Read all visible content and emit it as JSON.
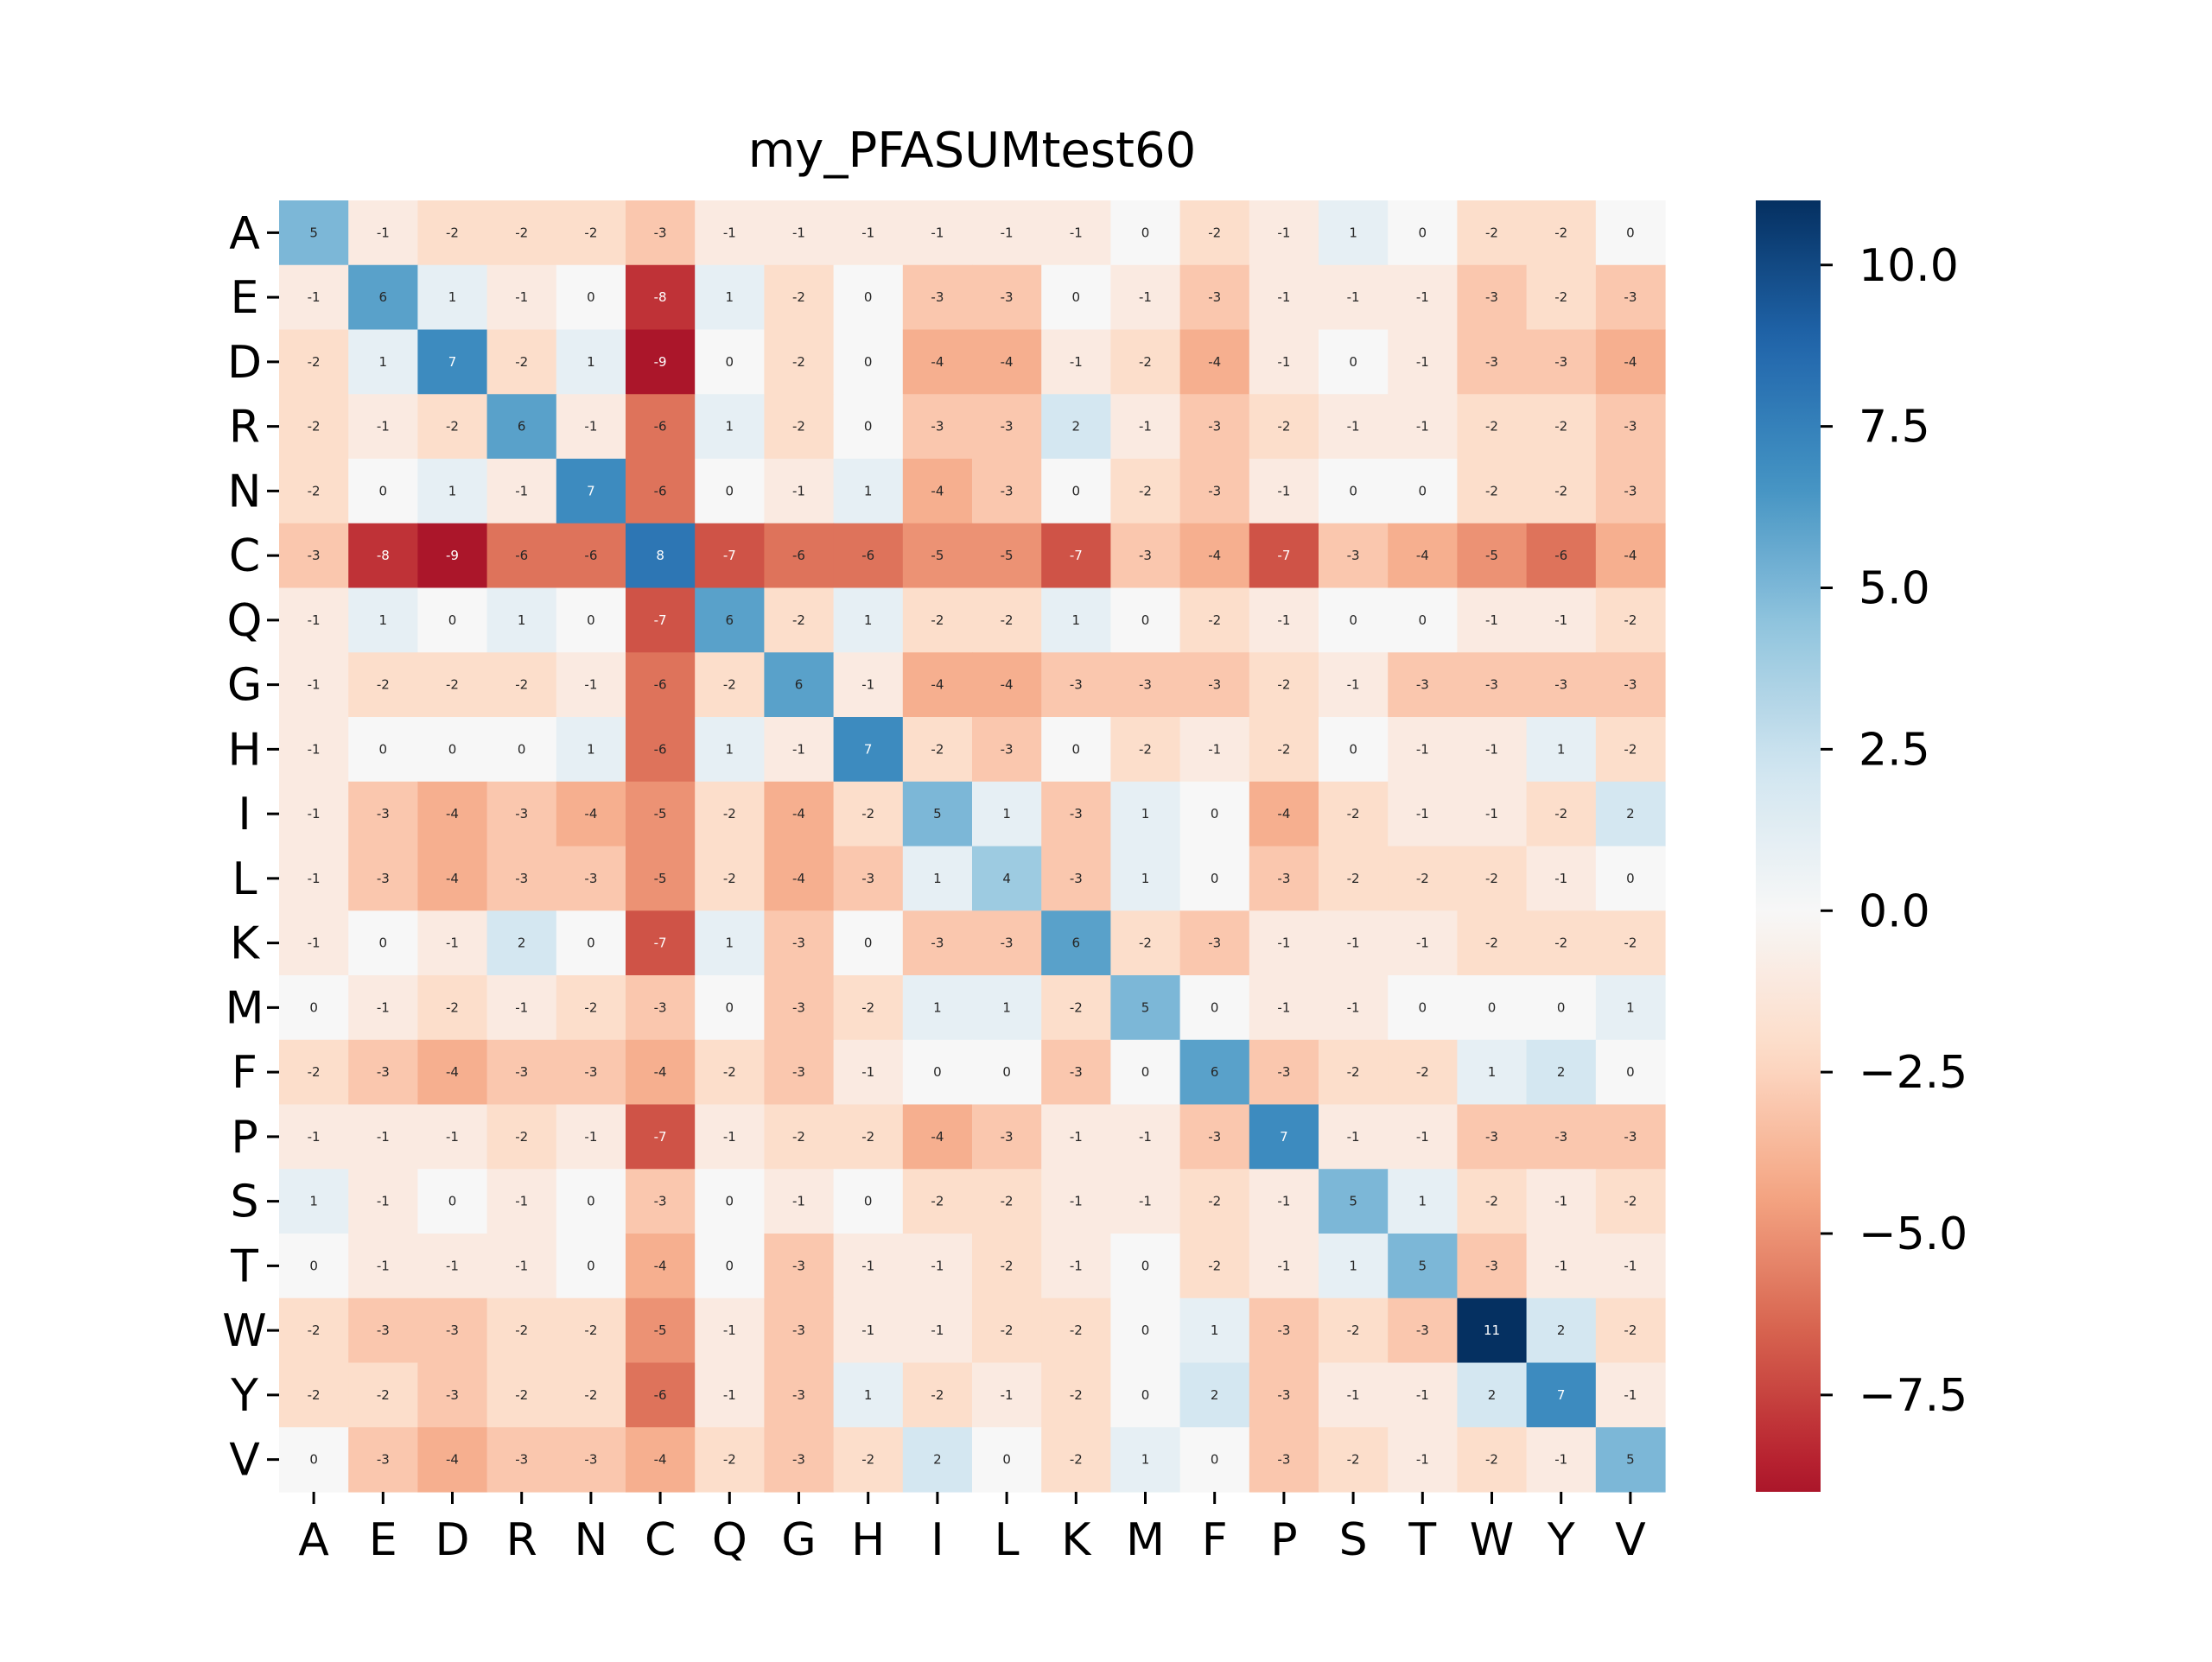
{
  "chart_data": {
    "type": "heatmap",
    "title": "my_PFASUMtest60",
    "xlabel": "",
    "ylabel": "",
    "x_categories": [
      "A",
      "E",
      "D",
      "R",
      "N",
      "C",
      "Q",
      "G",
      "H",
      "I",
      "L",
      "K",
      "M",
      "F",
      "P",
      "S",
      "T",
      "W",
      "Y",
      "V"
    ],
    "y_categories": [
      "A",
      "E",
      "D",
      "R",
      "N",
      "C",
      "Q",
      "G",
      "H",
      "I",
      "L",
      "K",
      "M",
      "F",
      "P",
      "S",
      "T",
      "W",
      "Y",
      "V"
    ],
    "values": [
      [
        5,
        -1,
        -2,
        -2,
        -2,
        -3,
        -1,
        -1,
        -1,
        -1,
        -1,
        -1,
        0,
        -2,
        -1,
        1,
        0,
        -2,
        -2,
        0
      ],
      [
        -1,
        6,
        1,
        -1,
        0,
        -8,
        1,
        -2,
        0,
        -3,
        -3,
        0,
        -1,
        -3,
        -1,
        -1,
        -1,
        -3,
        -2,
        -3
      ],
      [
        -2,
        1,
        7,
        -2,
        1,
        -9,
        0,
        -2,
        0,
        -4,
        -4,
        -1,
        -2,
        -4,
        -1,
        0,
        -1,
        -3,
        -3,
        -4
      ],
      [
        -2,
        -1,
        -2,
        6,
        -1,
        -6,
        1,
        -2,
        0,
        -3,
        -3,
        2,
        -1,
        -3,
        -2,
        -1,
        -1,
        -2,
        -2,
        -3
      ],
      [
        -2,
        0,
        1,
        -1,
        7,
        -6,
        0,
        -1,
        1,
        -4,
        -3,
        0,
        -2,
        -3,
        -1,
        0,
        0,
        -2,
        -2,
        -3
      ],
      [
        -3,
        -8,
        -9,
        -6,
        -6,
        8,
        -7,
        -6,
        -6,
        -5,
        -5,
        -7,
        -3,
        -4,
        -7,
        -3,
        -4,
        -5,
        -6,
        -4
      ],
      [
        -1,
        1,
        0,
        1,
        0,
        -7,
        6,
        -2,
        1,
        -2,
        -2,
        1,
        0,
        -2,
        -1,
        0,
        0,
        -1,
        -1,
        -2
      ],
      [
        -1,
        -2,
        -2,
        -2,
        -1,
        -6,
        -2,
        6,
        -1,
        -4,
        -4,
        -3,
        -3,
        -3,
        -2,
        -1,
        -3,
        -3,
        -3,
        -3
      ],
      [
        -1,
        0,
        0,
        0,
        1,
        -6,
        1,
        -1,
        7,
        -2,
        -3,
        0,
        -2,
        -1,
        -2,
        0,
        -1,
        -1,
        1,
        -2
      ],
      [
        -1,
        -3,
        -4,
        -3,
        -4,
        -5,
        -2,
        -4,
        -2,
        5,
        1,
        -3,
        1,
        0,
        -4,
        -2,
        -1,
        -1,
        -2,
        2
      ],
      [
        -1,
        -3,
        -4,
        -3,
        -3,
        -5,
        -2,
        -4,
        -3,
        1,
        4,
        -3,
        1,
        0,
        -3,
        -2,
        -2,
        -2,
        -1,
        0
      ],
      [
        -1,
        0,
        -1,
        2,
        0,
        -7,
        1,
        -3,
        0,
        -3,
        -3,
        6,
        -2,
        -3,
        -1,
        -1,
        -1,
        -2,
        -2,
        -2
      ],
      [
        0,
        -1,
        -2,
        -1,
        -2,
        -3,
        0,
        -3,
        -2,
        1,
        1,
        -2,
        5,
        0,
        -1,
        -1,
        0,
        0,
        0,
        1
      ],
      [
        -2,
        -3,
        -4,
        -3,
        -3,
        -4,
        -2,
        -3,
        -1,
        0,
        0,
        -3,
        0,
        6,
        -3,
        -2,
        -2,
        1,
        2,
        0
      ],
      [
        -1,
        -1,
        -1,
        -2,
        -1,
        -7,
        -1,
        -2,
        -2,
        -4,
        -3,
        -1,
        -1,
        -3,
        7,
        -1,
        -1,
        -3,
        -3,
        -3
      ],
      [
        1,
        -1,
        0,
        -1,
        0,
        -3,
        0,
        -1,
        0,
        -2,
        -2,
        -1,
        -1,
        -2,
        -1,
        5,
        1,
        -2,
        -1,
        -2
      ],
      [
        0,
        -1,
        -1,
        -1,
        0,
        -4,
        0,
        -3,
        -1,
        -1,
        -2,
        -1,
        0,
        -2,
        -1,
        1,
        5,
        -3,
        -1,
        -1
      ],
      [
        -2,
        -3,
        -3,
        -2,
        -2,
        -5,
        -1,
        -3,
        -1,
        -1,
        -2,
        -2,
        0,
        1,
        -3,
        -2,
        -3,
        11,
        2,
        -2
      ],
      [
        -2,
        -2,
        -3,
        -2,
        -2,
        -6,
        -1,
        -3,
        1,
        -2,
        -1,
        -2,
        0,
        2,
        -3,
        -1,
        -1,
        2,
        7,
        -1
      ],
      [
        0,
        -3,
        -4,
        -3,
        -3,
        -4,
        -2,
        -3,
        -2,
        2,
        0,
        -2,
        1,
        0,
        -3,
        -2,
        -1,
        -2,
        -1,
        5
      ]
    ],
    "colormap": "RdBu",
    "vmin": -9,
    "vmax": 11,
    "colorbar_ticks": [
      "10.0",
      "7.5",
      "5.0",
      "2.5",
      "0.0",
      "−2.5",
      "−5.0",
      "−7.5"
    ],
    "colorbar_tick_values": [
      10,
      7.5,
      5,
      2.5,
      0,
      -2.5,
      -5,
      -7.5
    ],
    "grid": false,
    "colorbar": "right"
  }
}
